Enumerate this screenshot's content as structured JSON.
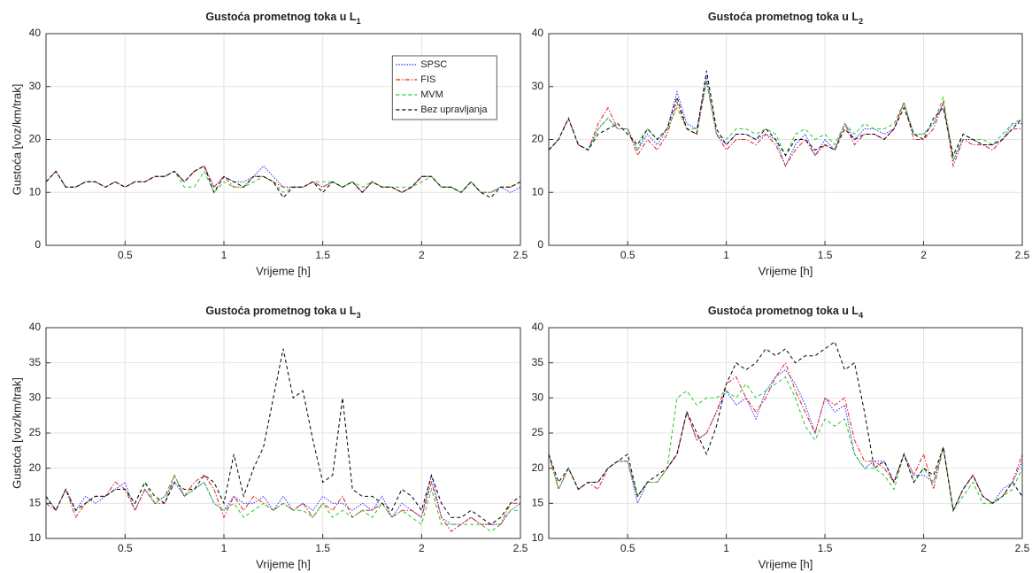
{
  "chart_data": [
    {
      "type": "line",
      "title": "Gustoća prometnog toka u L",
      "title_subscript": "1",
      "xlabel": "Vrijeme [h]",
      "ylabel": "Gustoća [voz/km/trak]",
      "x": [
        0.1,
        0.15,
        0.2,
        0.25,
        0.3,
        0.35,
        0.4,
        0.45,
        0.5,
        0.55,
        0.6,
        0.65,
        0.7,
        0.75,
        0.8,
        0.85,
        0.9,
        0.95,
        1.0,
        1.05,
        1.1,
        1.15,
        1.2,
        1.25,
        1.3,
        1.35,
        1.4,
        1.45,
        1.5,
        1.55,
        1.6,
        1.65,
        1.7,
        1.75,
        1.8,
        1.85,
        1.9,
        1.95,
        2.0,
        2.05,
        2.1,
        2.15,
        2.2,
        2.25,
        2.3,
        2.35,
        2.4,
        2.45,
        2.5
      ],
      "xlim": [
        0.1,
        2.5
      ],
      "xticks": [
        0.5,
        1,
        1.5,
        2,
        2.5
      ],
      "ylim": [
        0,
        40
      ],
      "yticks": [
        0,
        10,
        20,
        30,
        40
      ],
      "grid": true,
      "legend": "upper right",
      "series": [
        {
          "name": "SPSC",
          "color": "#2b2bff",
          "linestyle": "dotted",
          "values": [
            12,
            14,
            11,
            11,
            12,
            12,
            11,
            12,
            11,
            12,
            12,
            13,
            13,
            14,
            12,
            14,
            15,
            11,
            13,
            12,
            12,
            13,
            15,
            13,
            11,
            11,
            11,
            12,
            11,
            12,
            11,
            12,
            10,
            12,
            11,
            11,
            10,
            11,
            13,
            13,
            11,
            11,
            10,
            12,
            10,
            10,
            11,
            10,
            11
          ]
        },
        {
          "name": "FIS",
          "color": "#e82020",
          "linestyle": "dashdot",
          "values": [
            12,
            14,
            11,
            11,
            12,
            12,
            11,
            12,
            11,
            12,
            12,
            13,
            13,
            14,
            12,
            14,
            15,
            11,
            13,
            11,
            11,
            13,
            13,
            12,
            11,
            11,
            11,
            12,
            11,
            12,
            11,
            12,
            10,
            12,
            11,
            11,
            10,
            11,
            13,
            13,
            11,
            11,
            10,
            12,
            10,
            10,
            11,
            11,
            12
          ]
        },
        {
          "name": "MVM",
          "color": "#22cc22",
          "linestyle": "dashed",
          "values": [
            12,
            14,
            11,
            11,
            12,
            12,
            11,
            12,
            11,
            12,
            12,
            13,
            13,
            14,
            11,
            11,
            14,
            10,
            12,
            11,
            11,
            12,
            13,
            12,
            10,
            11,
            11,
            12,
            12,
            12,
            11,
            12,
            11,
            12,
            11,
            11,
            11,
            11,
            12,
            13,
            11,
            11,
            10,
            12,
            10,
            10,
            11,
            11,
            12
          ]
        },
        {
          "name": "Bez upravljanja",
          "color": "#000000",
          "linestyle": "dashed",
          "values": [
            12,
            14,
            11,
            11,
            12,
            12,
            11,
            12,
            11,
            12,
            12,
            13,
            13,
            14,
            12,
            14,
            15,
            10,
            13,
            12,
            11,
            13,
            13,
            12,
            9,
            11,
            11,
            12,
            10,
            12,
            11,
            12,
            10,
            12,
            11,
            11,
            10,
            11,
            13,
            13,
            11,
            11,
            10,
            12,
            10,
            9,
            11,
            11,
            12
          ]
        }
      ]
    },
    {
      "type": "line",
      "title": "Gustoća prometnog toka u L",
      "title_subscript": "2",
      "xlabel": "Vrijeme [h]",
      "x": [
        0.1,
        0.15,
        0.2,
        0.25,
        0.3,
        0.35,
        0.4,
        0.45,
        0.5,
        0.55,
        0.6,
        0.65,
        0.7,
        0.75,
        0.8,
        0.85,
        0.9,
        0.95,
        1.0,
        1.05,
        1.1,
        1.15,
        1.2,
        1.25,
        1.3,
        1.35,
        1.4,
        1.45,
        1.5,
        1.55,
        1.6,
        1.65,
        1.7,
        1.75,
        1.8,
        1.85,
        1.9,
        1.95,
        2.0,
        2.05,
        2.1,
        2.15,
        2.2,
        2.25,
        2.3,
        2.35,
        2.4,
        2.45,
        2.5
      ],
      "xlim": [
        0.1,
        2.5
      ],
      "xticks": [
        0.5,
        1,
        1.5,
        2,
        2.5
      ],
      "ylim": [
        0,
        40
      ],
      "yticks": [
        0,
        10,
        20,
        30,
        40
      ],
      "grid": true,
      "series": [
        {
          "name": "SPSC",
          "color": "#2b2bff",
          "linestyle": "dotted",
          "values": [
            18,
            20,
            24,
            19,
            18,
            22,
            24,
            22,
            22,
            18,
            21,
            19,
            22,
            29,
            23,
            22,
            32,
            21,
            19,
            21,
            21,
            20,
            21,
            20,
            15,
            19,
            21,
            17,
            20,
            18,
            23,
            20,
            22,
            22,
            21,
            22,
            27,
            21,
            21,
            23,
            27,
            16,
            20,
            20,
            19,
            19,
            20,
            23,
            23
          ]
        },
        {
          "name": "FIS",
          "color": "#e82020",
          "linestyle": "dashdot",
          "values": [
            18,
            20,
            24,
            19,
            18,
            23,
            26,
            22,
            22,
            17,
            20,
            18,
            21,
            27,
            22,
            21,
            31,
            21,
            18,
            20,
            20,
            19,
            21,
            19,
            15,
            18,
            20,
            17,
            19,
            18,
            23,
            19,
            21,
            21,
            20,
            22,
            27,
            20,
            20,
            22,
            27,
            15,
            20,
            19,
            19,
            18,
            20,
            22,
            22
          ]
        },
        {
          "name": "MVM",
          "color": "#22cc22",
          "linestyle": "dashed",
          "values": [
            18,
            20,
            24,
            19,
            18,
            22,
            24,
            22,
            22,
            18,
            22,
            20,
            22,
            26,
            22,
            22,
            31,
            21,
            20,
            22,
            22,
            21,
            22,
            21,
            17,
            21,
            22,
            20,
            21,
            19,
            23,
            21,
            23,
            22,
            22,
            23,
            27,
            21,
            21,
            23,
            28,
            16,
            21,
            20,
            20,
            19,
            21,
            23,
            24
          ]
        },
        {
          "name": "Bez upravljanja",
          "color": "#000000",
          "linestyle": "dashed",
          "values": [
            18,
            20,
            24,
            19,
            18,
            21,
            22,
            23,
            21,
            19,
            22,
            20,
            22,
            28,
            22,
            21,
            33,
            22,
            19,
            21,
            21,
            20,
            22,
            20,
            17,
            20,
            20,
            18,
            19,
            18,
            22,
            20,
            21,
            21,
            20,
            22,
            26,
            21,
            20,
            24,
            26,
            17,
            21,
            20,
            19,
            19,
            20,
            22,
            24
          ]
        }
      ]
    },
    {
      "type": "line",
      "title": "Gustoća prometnog toka u L",
      "title_subscript": "3",
      "xlabel": "Vrijeme [h]",
      "ylabel": "Gustoća [voz/km/trak]",
      "x": [
        0.1,
        0.15,
        0.2,
        0.25,
        0.3,
        0.35,
        0.4,
        0.45,
        0.5,
        0.55,
        0.6,
        0.65,
        0.7,
        0.75,
        0.8,
        0.85,
        0.9,
        0.95,
        1.0,
        1.05,
        1.1,
        1.15,
        1.2,
        1.25,
        1.3,
        1.35,
        1.4,
        1.45,
        1.5,
        1.55,
        1.6,
        1.65,
        1.7,
        1.75,
        1.8,
        1.85,
        1.9,
        1.95,
        2.0,
        2.05,
        2.1,
        2.15,
        2.2,
        2.25,
        2.3,
        2.35,
        2.4,
        2.45,
        2.5
      ],
      "xlim": [
        0.1,
        2.5
      ],
      "xticks": [
        0.5,
        1,
        1.5,
        2,
        2.5
      ],
      "ylim": [
        10,
        40
      ],
      "yticks": [
        10,
        15,
        20,
        25,
        30,
        35,
        40
      ],
      "grid": true,
      "series": [
        {
          "name": "SPSC",
          "color": "#2b2bff",
          "linestyle": "dotted",
          "values": [
            16,
            14,
            17,
            14,
            16,
            15,
            16,
            17,
            18,
            14,
            17,
            15,
            16,
            18,
            16,
            17,
            18,
            15,
            14,
            16,
            15,
            15,
            16,
            14,
            16,
            14,
            15,
            14,
            16,
            15,
            15,
            14,
            15,
            14,
            16,
            13,
            15,
            14,
            13,
            19,
            13,
            12,
            12,
            13,
            12,
            12,
            12,
            14,
            15
          ]
        },
        {
          "name": "FIS",
          "color": "#e82020",
          "linestyle": "dashdot",
          "values": [
            15,
            14,
            17,
            13,
            15,
            16,
            16,
            18,
            17,
            14,
            17,
            15,
            15,
            19,
            16,
            18,
            19,
            17,
            13,
            16,
            14,
            16,
            15,
            14,
            15,
            14,
            15,
            13,
            15,
            14,
            16,
            13,
            14,
            14,
            15,
            13,
            14,
            14,
            13,
            18,
            13,
            11,
            12,
            13,
            12,
            12,
            12,
            15,
            15
          ]
        },
        {
          "name": "MVM",
          "color": "#22cc22",
          "linestyle": "dashed",
          "values": [
            16,
            14,
            17,
            14,
            15,
            16,
            16,
            17,
            17,
            15,
            18,
            15,
            16,
            19,
            16,
            17,
            18,
            15,
            14,
            15,
            13,
            14,
            15,
            14,
            15,
            14,
            14,
            13,
            15,
            13,
            14,
            13,
            14,
            13,
            15,
            13,
            14,
            13,
            12,
            17,
            12,
            12,
            12,
            12,
            12,
            11,
            12,
            14,
            14
          ]
        },
        {
          "name": "Bez upravljanja",
          "color": "#000000",
          "linestyle": "dashed",
          "values": [
            16,
            14,
            17,
            14,
            15,
            16,
            16,
            17,
            17,
            15,
            18,
            16,
            15,
            18,
            17,
            17,
            19,
            18,
            15,
            22,
            16,
            20,
            23,
            30,
            37,
            30,
            31,
            24,
            18,
            19,
            30,
            17,
            16,
            16,
            15,
            14,
            17,
            16,
            14,
            19,
            15,
            13,
            13,
            14,
            13,
            12,
            13,
            15,
            16
          ]
        }
      ]
    },
    {
      "type": "line",
      "title": "Gustoća prometnog toka u L",
      "title_subscript": "4",
      "xlabel": "Vrijeme [h]",
      "x": [
        0.1,
        0.15,
        0.2,
        0.25,
        0.3,
        0.35,
        0.4,
        0.45,
        0.5,
        0.55,
        0.6,
        0.65,
        0.7,
        0.75,
        0.8,
        0.85,
        0.9,
        0.95,
        1.0,
        1.05,
        1.1,
        1.15,
        1.2,
        1.25,
        1.3,
        1.35,
        1.4,
        1.45,
        1.5,
        1.55,
        1.6,
        1.65,
        1.7,
        1.75,
        1.8,
        1.85,
        1.9,
        1.95,
        2.0,
        2.05,
        2.1,
        2.15,
        2.2,
        2.25,
        2.3,
        2.35,
        2.4,
        2.45,
        2.5
      ],
      "xlim": [
        0.1,
        2.5
      ],
      "xticks": [
        0.5,
        1,
        1.5,
        2,
        2.5
      ],
      "ylim": [
        10,
        40
      ],
      "yticks": [
        10,
        15,
        20,
        25,
        30,
        35,
        40
      ],
      "grid": true,
      "series": [
        {
          "name": "SPSC",
          "color": "#2b2bff",
          "linestyle": "dotted",
          "values": [
            22,
            17,
            20,
            17,
            18,
            18,
            20,
            21,
            21,
            15,
            18,
            18,
            20,
            22,
            28,
            24,
            25,
            28,
            31,
            29,
            30,
            27,
            31,
            33,
            34,
            32,
            29,
            25,
            30,
            28,
            29,
            22,
            20,
            21,
            21,
            18,
            22,
            19,
            19,
            18,
            23,
            14,
            17,
            19,
            16,
            15,
            17,
            18,
            21
          ]
        },
        {
          "name": "FIS",
          "color": "#e82020",
          "linestyle": "dashdot",
          "values": [
            22,
            17,
            20,
            17,
            18,
            17,
            20,
            21,
            21,
            16,
            18,
            18,
            20,
            22,
            28,
            24,
            25,
            28,
            32,
            33,
            30,
            28,
            30,
            33,
            35,
            31,
            28,
            25,
            30,
            29,
            30,
            24,
            21,
            21,
            20,
            18,
            22,
            19,
            22,
            17,
            23,
            14,
            17,
            19,
            16,
            15,
            16,
            18,
            22
          ]
        },
        {
          "name": "MVM",
          "color": "#22cc22",
          "linestyle": "dashed",
          "values": [
            22,
            17,
            20,
            17,
            18,
            18,
            20,
            21,
            21,
            16,
            18,
            18,
            20,
            30,
            31,
            29,
            30,
            30,
            31,
            30,
            32,
            30,
            31,
            32,
            33,
            30,
            26,
            24,
            27,
            26,
            27,
            22,
            20,
            20,
            19,
            17,
            22,
            18,
            20,
            18,
            23,
            14,
            16,
            18,
            15,
            15,
            16,
            17,
            20
          ]
        },
        {
          "name": "Bez upravljanja",
          "color": "#000000",
          "linestyle": "dashed",
          "values": [
            22,
            18,
            20,
            17,
            18,
            18,
            20,
            21,
            22,
            16,
            18,
            19,
            20,
            22,
            28,
            25,
            22,
            26,
            32,
            35,
            34,
            35,
            37,
            36,
            37,
            35,
            36,
            36,
            37,
            38,
            34,
            35,
            28,
            20,
            21,
            18,
            22,
            18,
            20,
            19,
            23,
            14,
            17,
            19,
            16,
            15,
            16,
            18,
            16
          ]
        }
      ]
    }
  ]
}
